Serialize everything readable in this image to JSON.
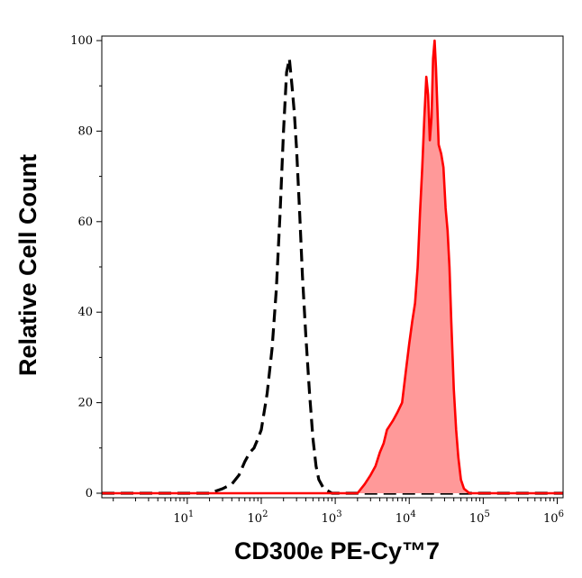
{
  "chart_data": {
    "type": "area",
    "title": "",
    "xlabel": "CD300e PE-Cy™7",
    "ylabel": "Relative Cell Count",
    "x_scale": "log",
    "xlim": [
      0.7,
      1200000
    ],
    "ylim": [
      -1,
      101
    ],
    "x_ticks": [
      {
        "value": 10,
        "base": "10",
        "exp": "1"
      },
      {
        "value": 100,
        "base": "10",
        "exp": "2"
      },
      {
        "value": 1000,
        "base": "10",
        "exp": "3"
      },
      {
        "value": 10000,
        "base": "10",
        "exp": "4"
      },
      {
        "value": 100000,
        "base": "10",
        "exp": "5"
      },
      {
        "value": 1000000,
        "base": "10",
        "exp": "6"
      }
    ],
    "y_ticks": [
      {
        "value": 0,
        "label": "0"
      },
      {
        "value": 20,
        "label": "20"
      },
      {
        "value": 40,
        "label": "40"
      },
      {
        "value": 60,
        "label": "60"
      },
      {
        "value": 80,
        "label": "80"
      },
      {
        "value": 100,
        "label": "100"
      }
    ],
    "grid": false,
    "legend": "none",
    "series": [
      {
        "style": "dashed-black-outline",
        "color": "#000000",
        "fill": "none",
        "x": [
          0.7,
          10,
          20,
          30,
          40,
          50,
          60,
          70,
          80,
          90,
          100,
          120,
          140,
          160,
          180,
          200,
          220,
          240,
          260,
          280,
          300,
          330,
          360,
          400,
          450,
          500,
          550,
          600,
          700,
          800,
          900,
          1000,
          1200000
        ],
        "y": [
          0,
          0,
          0,
          1,
          2,
          4,
          7,
          9,
          10,
          12,
          14,
          22,
          32,
          45,
          62,
          80,
          93,
          96,
          90,
          84,
          76,
          62,
          48,
          35,
          22,
          12,
          6,
          3,
          1,
          0.5,
          0,
          0,
          0
        ]
      },
      {
        "style": "filled-red",
        "color": "#ff0000",
        "fill": "#ff9999",
        "x": [
          0.7,
          2000,
          2500,
          3000,
          3500,
          4000,
          4500,
          5000,
          6000,
          7000,
          8000,
          9000,
          10000,
          11000,
          12000,
          13000,
          14000,
          15000,
          16000,
          17000,
          18000,
          19000,
          20000,
          21000,
          22000,
          23000,
          24000,
          25000,
          27000,
          29000,
          31000,
          33000,
          35000,
          37000,
          40000,
          43000,
          46000,
          50000,
          55000,
          60000,
          65000,
          70000,
          1200000
        ],
        "y": [
          0,
          0,
          2,
          4,
          6,
          9,
          11,
          14,
          16,
          18,
          20,
          27,
          33,
          38,
          42,
          50,
          62,
          72,
          83,
          92,
          88,
          78,
          83,
          96,
          100,
          94,
          85,
          77,
          75,
          72,
          63,
          58,
          50,
          38,
          23,
          14,
          8,
          3,
          1,
          0.5,
          0,
          0,
          0
        ]
      }
    ]
  }
}
